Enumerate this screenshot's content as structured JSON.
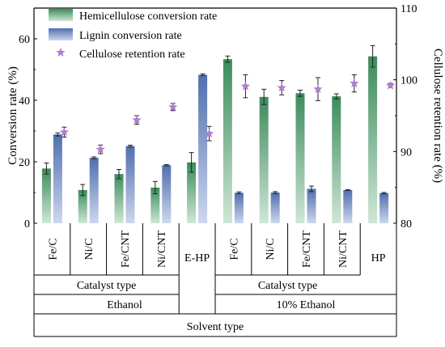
{
  "chart_data": {
    "type": "bar",
    "categories": [
      "Fe/C",
      "Ni/C",
      "Fe/CNT",
      "Ni/CNT",
      "E-HP",
      "Fe/C",
      "Ni/C",
      "Fe/CNT",
      "Ni/CNT",
      "HP"
    ],
    "series": [
      {
        "name": "Hemicellulose conversion rate",
        "axis": "left",
        "values": [
          17.8,
          10.8,
          16.0,
          11.6,
          19.8,
          53.4,
          41.1,
          42.3,
          41.3,
          54.3
        ],
        "errors": [
          1.8,
          1.8,
          1.5,
          2.0,
          3.2,
          1.0,
          2.5,
          1.0,
          0.8,
          3.5
        ]
      },
      {
        "name": "Lignin conversion rate",
        "axis": "left",
        "values": [
          28.9,
          21.3,
          25.1,
          18.9,
          48.3,
          9.9,
          10.0,
          11.2,
          10.8,
          9.8
        ],
        "errors": [
          0.5,
          0.3,
          0.3,
          0.2,
          0.3,
          0.3,
          0.3,
          0.9,
          0.1,
          0.2
        ]
      },
      {
        "name": "Cellulose retention rate",
        "axis": "right",
        "marker": "star",
        "values": [
          92.7,
          90.3,
          94.4,
          96.2,
          92.5,
          99.1,
          98.9,
          98.7,
          99.5,
          99.2
        ],
        "errors": [
          0.7,
          0.6,
          0.6,
          0.5,
          1.0,
          1.6,
          1.0,
          1.6,
          1.2,
          0.3
        ]
      }
    ],
    "ylabel": "Conversion rate (%)",
    "ylim": [
      0,
      70
    ],
    "yticks": [
      "0",
      "20",
      "40",
      "60"
    ],
    "y2label": "Cellulose retention rate (%)",
    "y2lim": [
      80,
      110
    ],
    "y2ticks": [
      "80",
      "90",
      "100",
      "110"
    ],
    "groups": {
      "catalyst_label": "Catalyst type",
      "ethanol_label": "Ethanol",
      "ethanol10_label": "10% Ethanol",
      "solvent_label": "Solvent type"
    },
    "legend_position": "top-left",
    "colors": {
      "hemicellulose_top": "#3c8c5c",
      "hemicellulose_bottom": "#cfe6d6",
      "lignin_top": "#4f6fae",
      "lignin_bottom": "#cdd7ee",
      "cellulose_star": "#b17fd0"
    }
  }
}
